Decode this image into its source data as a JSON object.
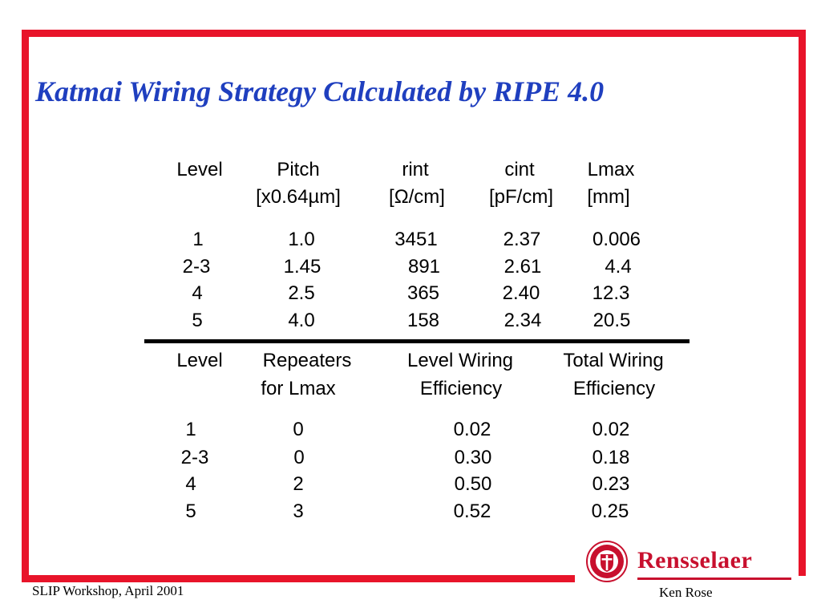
{
  "title": "Katmai Wiring Strategy Calculated by RIPE 4.0",
  "table1": {
    "headers": [
      [
        "Level",
        ""
      ],
      [
        "Pitch",
        "[x0.64µm]"
      ],
      [
        "rint",
        "[Ω/cm]"
      ],
      [
        "cint",
        "[pF/cm]"
      ],
      [
        "Lmax",
        "[mm]"
      ]
    ],
    "rows": [
      [
        "1",
        "1.0",
        "3451",
        "2.37",
        "0.006"
      ],
      [
        "2-3",
        "1.45",
        "891",
        "2.61",
        "4.4"
      ],
      [
        "4",
        "2.5",
        "365",
        "2.40",
        "12.3"
      ],
      [
        "5",
        "4.0",
        "158",
        "2.34",
        "20.5"
      ]
    ]
  },
  "table2": {
    "headers": [
      [
        "Level",
        ""
      ],
      [
        "Repeaters",
        "for Lmax"
      ],
      [
        "Level Wiring",
        "Efficiency"
      ],
      [
        "Total Wiring",
        "Efficiency"
      ]
    ],
    "rows": [
      [
        "1",
        "0",
        "0.02",
        "0.02"
      ],
      [
        "2-3",
        "0",
        "0.30",
        "0.18"
      ],
      [
        "4",
        "2",
        "0.50",
        "0.23"
      ],
      [
        "5",
        "3",
        "0.52",
        "0.25"
      ]
    ]
  },
  "footer": {
    "left": "SLIP Workshop, April 2001",
    "right": "Ken Rose"
  },
  "logo": {
    "name": "Rensselaer",
    "icon": "rensselaer-seal-icon"
  },
  "colors": {
    "frame": "#e8142a",
    "title": "#1f3fbf",
    "brand": "#c8102e"
  }
}
